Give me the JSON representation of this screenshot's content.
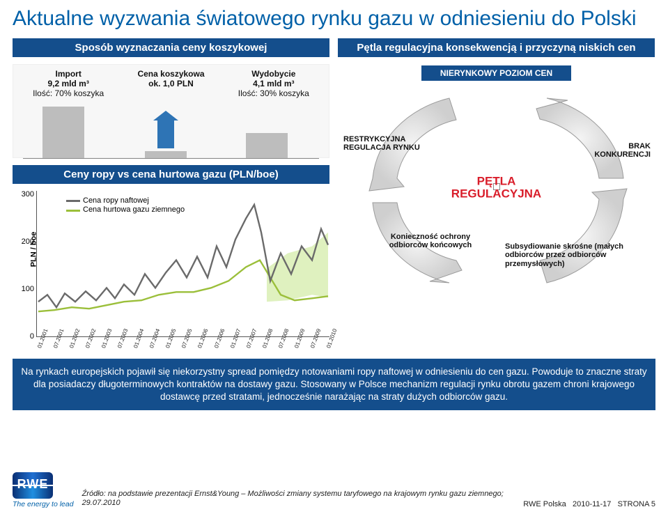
{
  "title": "Aktualne wyzwania światowego rynku gazu w odniesieniu do Polski",
  "left": {
    "sub1": "Sposób wyznaczania ceny koszykowej",
    "basket": {
      "c1": {
        "l1": "Import",
        "l2": "9,2 mld m³",
        "l3": "Ilość: 70% koszyka"
      },
      "c2": {
        "l1": "Cena koszykowa",
        "l2": "ok. 1,0 PLN"
      },
      "c3": {
        "l1": "Wydobycie",
        "l2": "4,1 mld m³",
        "l3": "Ilość: 30% koszyka"
      }
    },
    "sub2": "Ceny ropy vs cena hurtowa gazu (PLN/boe)",
    "chart": {
      "ylabel": "PLN / boe",
      "yticks": [
        "0",
        "100",
        "200",
        "300"
      ],
      "xticks": [
        "01.2001",
        "07.2001",
        "01.2002",
        "07.2002",
        "01.2003",
        "07.2003",
        "01.2004",
        "07.2004",
        "01.2005",
        "07.2005",
        "01.2006",
        "07.2006",
        "01.2007",
        "07.2007",
        "01.2008",
        "07.2008",
        "01.2009",
        "07.2009",
        "01.2010"
      ],
      "legend": {
        "a": "Cena ropy naftowej",
        "b": "Cena hurtowa gazu ziemnego"
      },
      "colors": {
        "ropa": "#6a6a6a",
        "gaz": "#9bbf3a",
        "band": "#dff1bf"
      }
    }
  },
  "right": {
    "sub": "Pętla regulacyjna konsekwencją i przyczyną niskich cen",
    "loop": {
      "nonmarket": "NIERYNKOWY POZIOM CEN",
      "center1": "PĘTLA",
      "center2": "REGULACYJNA",
      "reg": "RESTRYKCYJNA REGULACJA RYNKU",
      "comp": "BRAK KONKURENCJI",
      "ochr": "Konieczność ochrony odbiorców końcowych",
      "subs": "Subsydiowanie skrośne (małych odbiorców przez odbiorców przemysłowych)",
      "arc_fill": "#d6d6d6",
      "arc_edge": "#9a9a9a"
    }
  },
  "info": "Na rynkach europejskich pojawił się niekorzystny spread pomiędzy notowaniami ropy naftowej w odniesieniu do cen gazu. Powoduje to znaczne straty dla posiadaczy długoterminowych kontraktów na dostawy gazu. Stosowany w Polsce mechanizm regulacji rynku obrotu gazem chroni krajowego dostawcę przed stratami, jednocześnie narażając na straty dużych odbiorców gazu.",
  "footer": {
    "logo_text": "RWE",
    "tagline": "The energy to lead",
    "source": "Źródło: na podstawie prezentacji Ernst&Young – Możliwości zmiany systemu taryfowego na krajowym rynku gazu ziemnego; 29.07.2010",
    "brand": "RWE Polska",
    "date": "2010-11-17",
    "page": "STRONA 5"
  },
  "colors": {
    "blue_head": "#144e8c",
    "blue_title": "#0060a8"
  }
}
